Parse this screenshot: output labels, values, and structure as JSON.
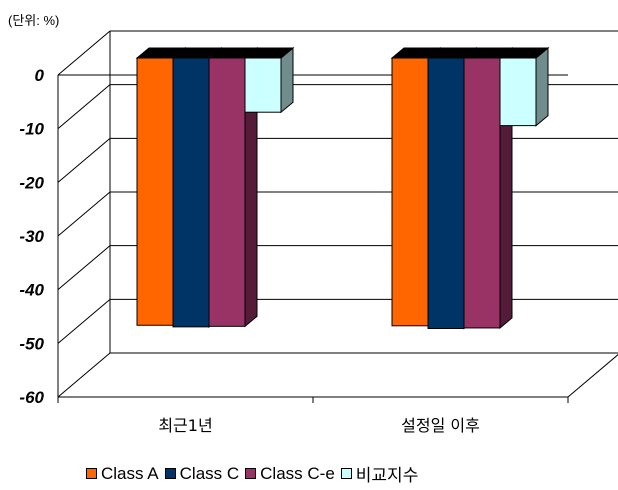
{
  "unit_label": "(단위: %)",
  "chart_data": {
    "type": "bar",
    "title": "",
    "xlabel": "",
    "ylabel": "",
    "unit": "(단위: %)",
    "categories": [
      "최근1년",
      "설정일 이후"
    ],
    "series": [
      {
        "name": "Class A",
        "values": [
          -49.8,
          -49.9
        ],
        "color": "#ff6600"
      },
      {
        "name": "Class C",
        "values": [
          -50.1,
          -50.4
        ],
        "color": "#003366"
      },
      {
        "name": "Class C-e",
        "values": [
          -50.0,
          -50.3
        ],
        "color": "#993366"
      },
      {
        "name": "비교지수",
        "values": [
          -10.1,
          -12.6
        ],
        "color": "#ccffff"
      }
    ],
    "ylim": [
      -60,
      0
    ],
    "yticks": [
      "0",
      "-10",
      "-20",
      "-30",
      "-40",
      "-50",
      "-60"
    ],
    "grid": true,
    "legend_position": "bottom"
  }
}
